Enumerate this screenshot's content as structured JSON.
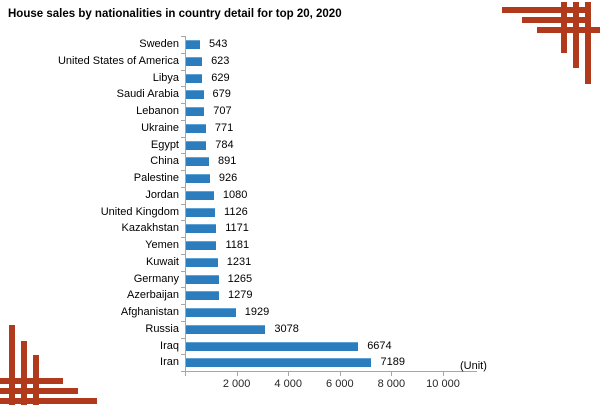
{
  "title": "House sales by nationalities in country detail for top 20, 2020",
  "unit_label": "(Unit)",
  "colors": {
    "bar": "#2b7dbd",
    "bar_highlight": "#5ea3d4",
    "axis": "#a6a6a6",
    "decoration": "#b23a1c",
    "text": "#000000"
  },
  "chart_data": {
    "type": "bar",
    "orientation": "horizontal",
    "title": "House sales by nationalities in country detail for top 20, 2020",
    "xlabel": "(Unit)",
    "ylabel": "",
    "grid": false,
    "legend": "none",
    "value_labels_shown": true,
    "xlim": [
      0,
      10000
    ],
    "categories": [
      "Sweden",
      "United States of America",
      "Libya",
      "Saudi Arabia",
      "Lebanon",
      "Ukraine",
      "Egypt",
      "China",
      "Palestine",
      "Jordan",
      "United Kingdom",
      "Kazakhstan",
      "Yemen",
      "Kuwait",
      "Germany",
      "Azerbaijan",
      "Afghanistan",
      "Russia",
      "Iraq",
      "Iran"
    ],
    "values": [
      543,
      623,
      629,
      679,
      707,
      771,
      784,
      891,
      926,
      1080,
      1126,
      1171,
      1181,
      1231,
      1265,
      1279,
      1929,
      3078,
      6674,
      7189
    ],
    "x_tick_values": [
      2000,
      4000,
      6000,
      8000,
      10000
    ],
    "x_tick_labels": [
      "2 000",
      "4 000",
      "6 000",
      "8 000",
      "10 000"
    ]
  }
}
